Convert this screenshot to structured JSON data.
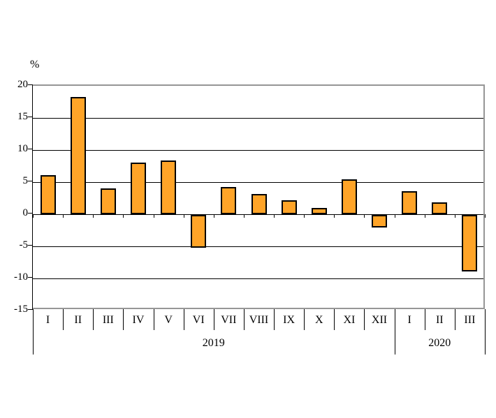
{
  "chart_data": {
    "type": "bar",
    "title": "",
    "xlabel": "",
    "ylabel": "%",
    "ylim": [
      -15,
      20
    ],
    "ytick_step": 5,
    "ytick_labels": [
      "20",
      "15",
      "10",
      "5",
      "0",
      "-5",
      "-10",
      "-15"
    ],
    "gridline_values": [
      15,
      10,
      5,
      -5,
      -10
    ],
    "categories": [
      "I",
      "II",
      "III",
      "IV",
      "V",
      "VI",
      "VII",
      "VIII",
      "IX",
      "X",
      "XI",
      "XII",
      "I",
      "II",
      "III"
    ],
    "values": [
      6.1,
      18.3,
      4.0,
      8.0,
      8.4,
      -5.1,
      4.2,
      3.2,
      2.2,
      1.0,
      5.4,
      -2.0,
      3.6,
      1.9,
      -8.8
    ],
    "group_labels": [
      {
        "label": "2019",
        "span": 12
      },
      {
        "label": "2020",
        "span": 3
      }
    ],
    "grid": true,
    "legend": false,
    "colors": {
      "bar_fill": "#FFA428",
      "bar_border": "#000000",
      "plot_border": "#969696",
      "gridline": "#000000",
      "text": "#000000",
      "background": "#FFFFFF"
    }
  }
}
